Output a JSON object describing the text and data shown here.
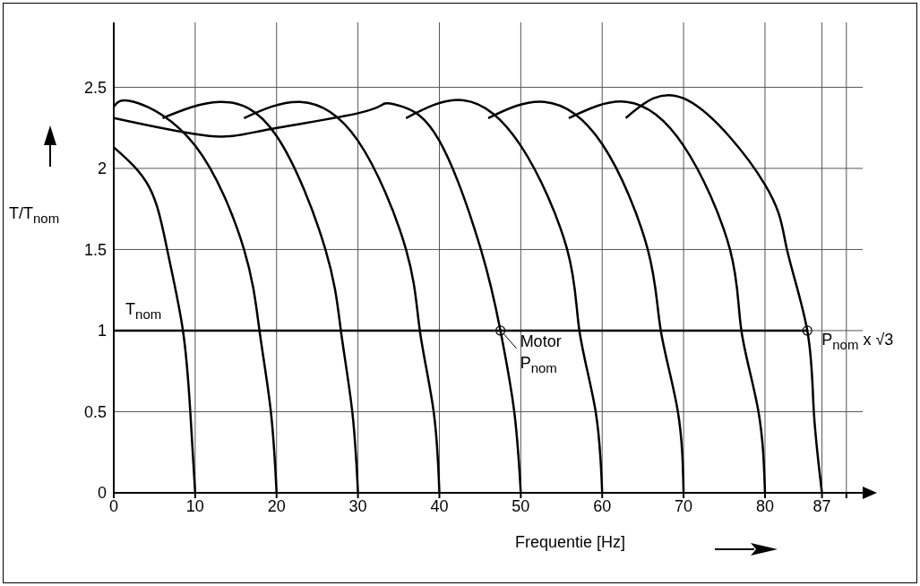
{
  "chart_data": {
    "type": "line",
    "xlabel": "Frequentie [Hz]",
    "ylabel": "T/T$_{nom}$",
    "xlim": [
      0,
      92
    ],
    "ylim": [
      0,
      2.9
    ],
    "xticks": [
      0,
      10,
      20,
      30,
      40,
      50,
      60,
      70,
      80,
      87,
      {
        "value": 90,
        "label": null
      }
    ],
    "yticks": [
      0,
      0.5,
      1,
      1.5,
      2,
      2.5
    ],
    "grid": true,
    "series": [
      {
        "color": "#000000",
        "x": [
          0,
          4.4,
          6.6,
          8.5,
          9.4,
          10
        ],
        "values": [
          2.13,
          1.88,
          1.49,
          1,
          0.5,
          0
        ]
      },
      {
        "color": "#000000",
        "x": [
          0,
          2.5,
          10,
          16,
          17.9,
          19.3,
          20
        ],
        "values": [
          2.38,
          2.41,
          2.14,
          1.5,
          1,
          0.5,
          0
        ]
      },
      {
        "color": "#000000",
        "x": [
          6,
          13,
          20,
          26,
          27.9,
          29.3,
          30
        ],
        "values": [
          2.31,
          2.41,
          2.2,
          1.5,
          1,
          0.5,
          0
        ]
      },
      {
        "color": "#000000",
        "x": [
          16,
          22.9,
          30,
          35.9,
          37.6,
          39.3,
          40
        ],
        "values": [
          2.31,
          2.41,
          2.17,
          1.5,
          1,
          0.5,
          0
        ]
      },
      {
        "color": "#000000",
        "x": [
          0,
          11.7,
          19,
          30,
          33.3,
          35.5,
          40,
          45.1,
          47.5,
          49.2,
          50
        ],
        "values": [
          2.31,
          2.2,
          2.24,
          2.34,
          2.4,
          2.38,
          2.17,
          1.5,
          1,
          0.5,
          0
        ]
      },
      {
        "color": "#000000",
        "x": [
          35.9,
          43,
          50,
          55.7,
          57.2,
          59.2,
          60
        ],
        "values": [
          2.31,
          2.42,
          2.14,
          1.5,
          1,
          0.5,
          0
        ]
      },
      {
        "color": "#000000",
        "x": [
          46,
          52.9,
          60,
          65.6,
          67.2,
          69.3,
          70
        ],
        "values": [
          2.31,
          2.41,
          2.15,
          1.5,
          1,
          0.5,
          0
        ]
      },
      {
        "color": "#000000",
        "x": [
          55.9,
          63,
          70,
          75.7,
          77.1,
          79.2,
          80
        ],
        "values": [
          2.31,
          2.41,
          2.14,
          1.5,
          1,
          0.5,
          0
        ]
      },
      {
        "color": "#000000",
        "x": [
          62.9,
          70.5,
          80,
          82.7,
          85.2,
          86,
          87
        ],
        "values": [
          2.31,
          2.42,
          1.9,
          1.5,
          1,
          0.5,
          0
        ]
      },
      {
        "color": "#000000",
        "x": [
          0,
          85.2
        ],
        "values": [
          1,
          1
        ]
      },
      {
        "type": "scatter",
        "marker": "circle",
        "color": "#000000",
        "x": [
          47.5,
          85.2
        ],
        "values": [
          1,
          1
        ]
      }
    ],
    "annotations": [
      {
        "text": "T$_{nom}$",
        "x": 1,
        "y": 1
      },
      {
        "text": "Motor\nP$_{nom}$",
        "x": 47.5,
        "y": 1
      },
      {
        "text": "P$_{nom}$ x √3",
        "x": 85.2,
        "y": 1
      }
    ]
  }
}
